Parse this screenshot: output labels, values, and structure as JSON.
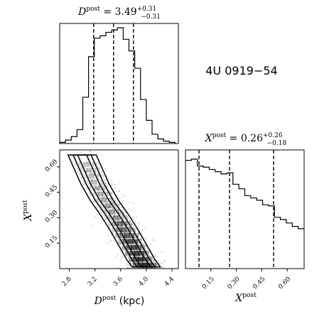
{
  "chart_data": {
    "type": "corner",
    "source_label": "4U 0919−54",
    "parameters": [
      {
        "symbol": "D",
        "sup": "post",
        "unit": " (kpc)"
      },
      {
        "symbol": "X",
        "sup": "post",
        "unit": ""
      }
    ],
    "summaries": [
      {
        "median": "3.49",
        "plus": "+0.31",
        "minus": "−0.31"
      },
      {
        "median": "0.26",
        "plus": "+0.26",
        "minus": "−0.18"
      }
    ],
    "d_axis": {
      "range": [
        2.65,
        4.5
      ],
      "ticks": [
        2.8,
        3.2,
        3.6,
        4.0,
        4.4
      ],
      "tick_labels": [
        "2.8",
        "3.2",
        "3.6",
        "4.0",
        "4.4"
      ]
    },
    "x_axis": {
      "range": [
        0.0,
        0.7
      ],
      "ticks": [
        0.15,
        0.3,
        0.45,
        0.6
      ],
      "tick_labels": [
        "0.15",
        "0.30",
        "0.45",
        "0.60"
      ]
    },
    "d_hist": {
      "bin_edges": [
        2.65,
        2.74,
        2.83,
        2.92,
        3.01,
        3.1,
        3.19,
        3.28,
        3.37,
        3.46,
        3.55,
        3.64,
        3.73,
        3.82,
        3.91,
        4.0,
        4.09,
        4.18,
        4.27,
        4.36,
        4.45
      ],
      "counts": [
        0.01,
        0.03,
        0.06,
        0.12,
        0.4,
        0.75,
        0.91,
        0.93,
        0.96,
        0.98,
        1.0,
        0.9,
        0.8,
        0.65,
        0.38,
        0.2,
        0.08,
        0.04,
        0.02,
        0.01
      ],
      "quantiles": [
        3.18,
        3.49,
        3.8
      ]
    },
    "x_hist": {
      "bin_edges": [
        0.0,
        0.035,
        0.07,
        0.105,
        0.14,
        0.175,
        0.21,
        0.245,
        0.28,
        0.315,
        0.35,
        0.385,
        0.42,
        0.455,
        0.49,
        0.525,
        0.56,
        0.595,
        0.63,
        0.665,
        0.7
      ],
      "counts": [
        0.95,
        0.96,
        0.9,
        0.89,
        0.87,
        0.85,
        0.83,
        0.84,
        0.74,
        0.7,
        0.64,
        0.62,
        0.6,
        0.56,
        0.55,
        0.45,
        0.43,
        0.4,
        0.37,
        0.35
      ],
      "quantiles": [
        0.08,
        0.26,
        0.52
      ]
    },
    "joint": {
      "ridge": [
        [
          3.0,
          0.67
        ],
        [
          3.2,
          0.5
        ],
        [
          3.35,
          0.4
        ],
        [
          3.5,
          0.32
        ],
        [
          3.65,
          0.23
        ],
        [
          3.8,
          0.13
        ],
        [
          3.92,
          0.05
        ],
        [
          4.0,
          0.01
        ]
      ],
      "contour_widths": [
        0.07,
        0.14,
        0.22
      ]
    }
  }
}
